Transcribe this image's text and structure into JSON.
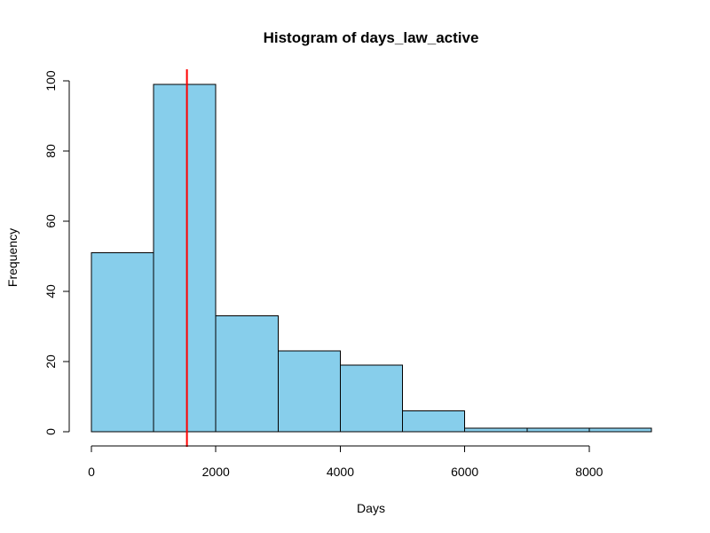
{
  "chart_data": {
    "type": "bar",
    "title": "Histogram of days_law_active",
    "xlabel": "Days",
    "ylabel": "Frequency",
    "bins": [
      {
        "from": 0,
        "to": 1000,
        "count": 51
      },
      {
        "from": 1000,
        "to": 2000,
        "count": 99
      },
      {
        "from": 2000,
        "to": 3000,
        "count": 33
      },
      {
        "from": 3000,
        "to": 4000,
        "count": 23
      },
      {
        "from": 4000,
        "to": 5000,
        "count": 19
      },
      {
        "from": 5000,
        "to": 6000,
        "count": 6
      },
      {
        "from": 6000,
        "to": 7000,
        "count": 1
      },
      {
        "from": 7000,
        "to": 8000,
        "count": 1
      },
      {
        "from": 8000,
        "to": 9000,
        "count": 1
      }
    ],
    "xlim": [
      0,
      9000
    ],
    "ylim": [
      0,
      100
    ],
    "xticks": [
      "0",
      "2000",
      "4000",
      "6000",
      "8000"
    ],
    "yticks": [
      "0",
      "20",
      "40",
      "60",
      "80",
      "100"
    ],
    "xtick_values": [
      0,
      2000,
      4000,
      6000,
      8000
    ],
    "ytick_values": [
      0,
      20,
      40,
      60,
      80,
      100
    ],
    "vline": {
      "x": 1535,
      "color": "#ff0000"
    },
    "bar_color": "#87ceeb",
    "bar_edge_color": "#000000",
    "grid": false,
    "legend": "none"
  }
}
